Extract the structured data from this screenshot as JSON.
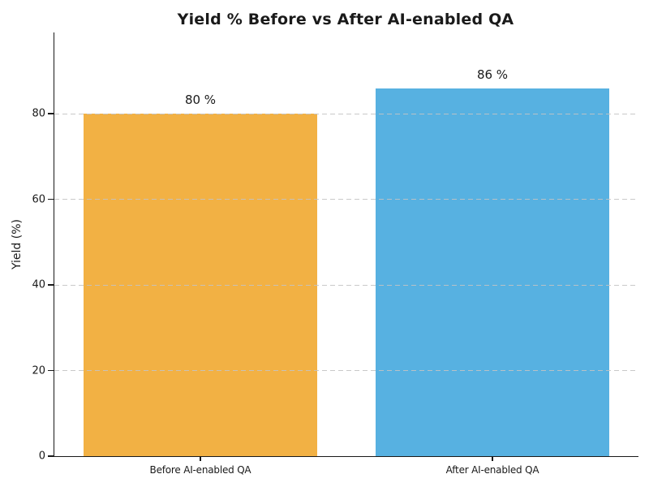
{
  "chart_data": {
    "type": "bar",
    "title": "Yield % Before vs After AI-enabled QA",
    "ylabel": "Yield (%)",
    "xlabel": "",
    "categories": [
      "Before AI-enabled QA",
      "After AI-enabled QA"
    ],
    "values": [
      80,
      86
    ],
    "value_labels": [
      "80 %",
      "86 %"
    ],
    "bar_colors": [
      "#f2b144",
      "#57b1e1"
    ],
    "yticks": [
      0,
      20,
      40,
      60,
      80
    ],
    "ylim": [
      0,
      99
    ],
    "bar_width_fraction": 0.8,
    "grid": "horizontal dashed",
    "legend": "none"
  },
  "colors": {
    "background": "#ffffff",
    "axis": "#1a1a1a",
    "text": "#1a1a1a",
    "gridline": "#c3c3c3"
  }
}
